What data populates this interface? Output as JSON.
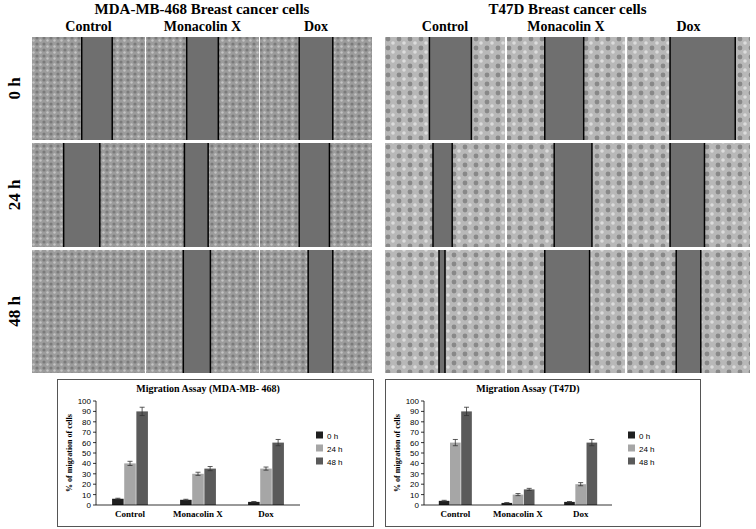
{
  "panels": {
    "groups": [
      {
        "title": "MDA-MB-468 Breast cancer cells",
        "columns": [
          "Control",
          "Monacolin X",
          "Dox"
        ]
      },
      {
        "title": "T47D Breast cancer cells",
        "columns": [
          "Control",
          "Monacolin X",
          "Dox"
        ]
      }
    ],
    "rows": [
      "0 h",
      "24 h",
      "48 h"
    ]
  },
  "chart_data": [
    {
      "type": "bar",
      "title": "Migration Assay (MDA-MB- 468)",
      "y_label": "% of migration of cells",
      "categories": [
        "Control",
        "Monacolin X",
        "Dox"
      ],
      "series": [
        {
          "name": "0 h",
          "color": "#1f1f1f",
          "values": [
            6,
            5,
            3
          ],
          "errors": [
            0.5,
            0.5,
            0.3
          ]
        },
        {
          "name": "24 h",
          "color": "#a6a6a6",
          "values": [
            40,
            30,
            35
          ],
          "errors": [
            2,
            1.5,
            1.5
          ]
        },
        {
          "name": "48 h",
          "color": "#5a5a5a",
          "values": [
            90,
            35,
            60
          ],
          "errors": [
            4,
            2,
            3
          ]
        }
      ],
      "ylim": [
        0,
        100
      ],
      "yticks": [
        0,
        10,
        20,
        30,
        40,
        50,
        60,
        70,
        80,
        90,
        100
      ],
      "grid": false,
      "legend": "right"
    },
    {
      "type": "bar",
      "title": "Migration Assay (T47D)",
      "y_label": "% of migration of cells",
      "categories": [
        "Control",
        "Monacolin X",
        "Dox"
      ],
      "series": [
        {
          "name": "0 h",
          "color": "#1f1f1f",
          "values": [
            4,
            2,
            3
          ],
          "errors": [
            0.5,
            0.3,
            0.3
          ]
        },
        {
          "name": "24 h",
          "color": "#a6a6a6",
          "values": [
            60,
            10,
            20
          ],
          "errors": [
            3,
            1,
            1.5
          ]
        },
        {
          "name": "48 h",
          "color": "#5a5a5a",
          "values": [
            90,
            15,
            60
          ],
          "errors": [
            4,
            1,
            3
          ]
        }
      ],
      "ylim": [
        0,
        100
      ],
      "yticks": [
        0,
        10,
        20,
        30,
        40,
        50,
        60,
        70,
        80,
        90,
        100
      ],
      "grid": false,
      "legend": "right"
    }
  ]
}
